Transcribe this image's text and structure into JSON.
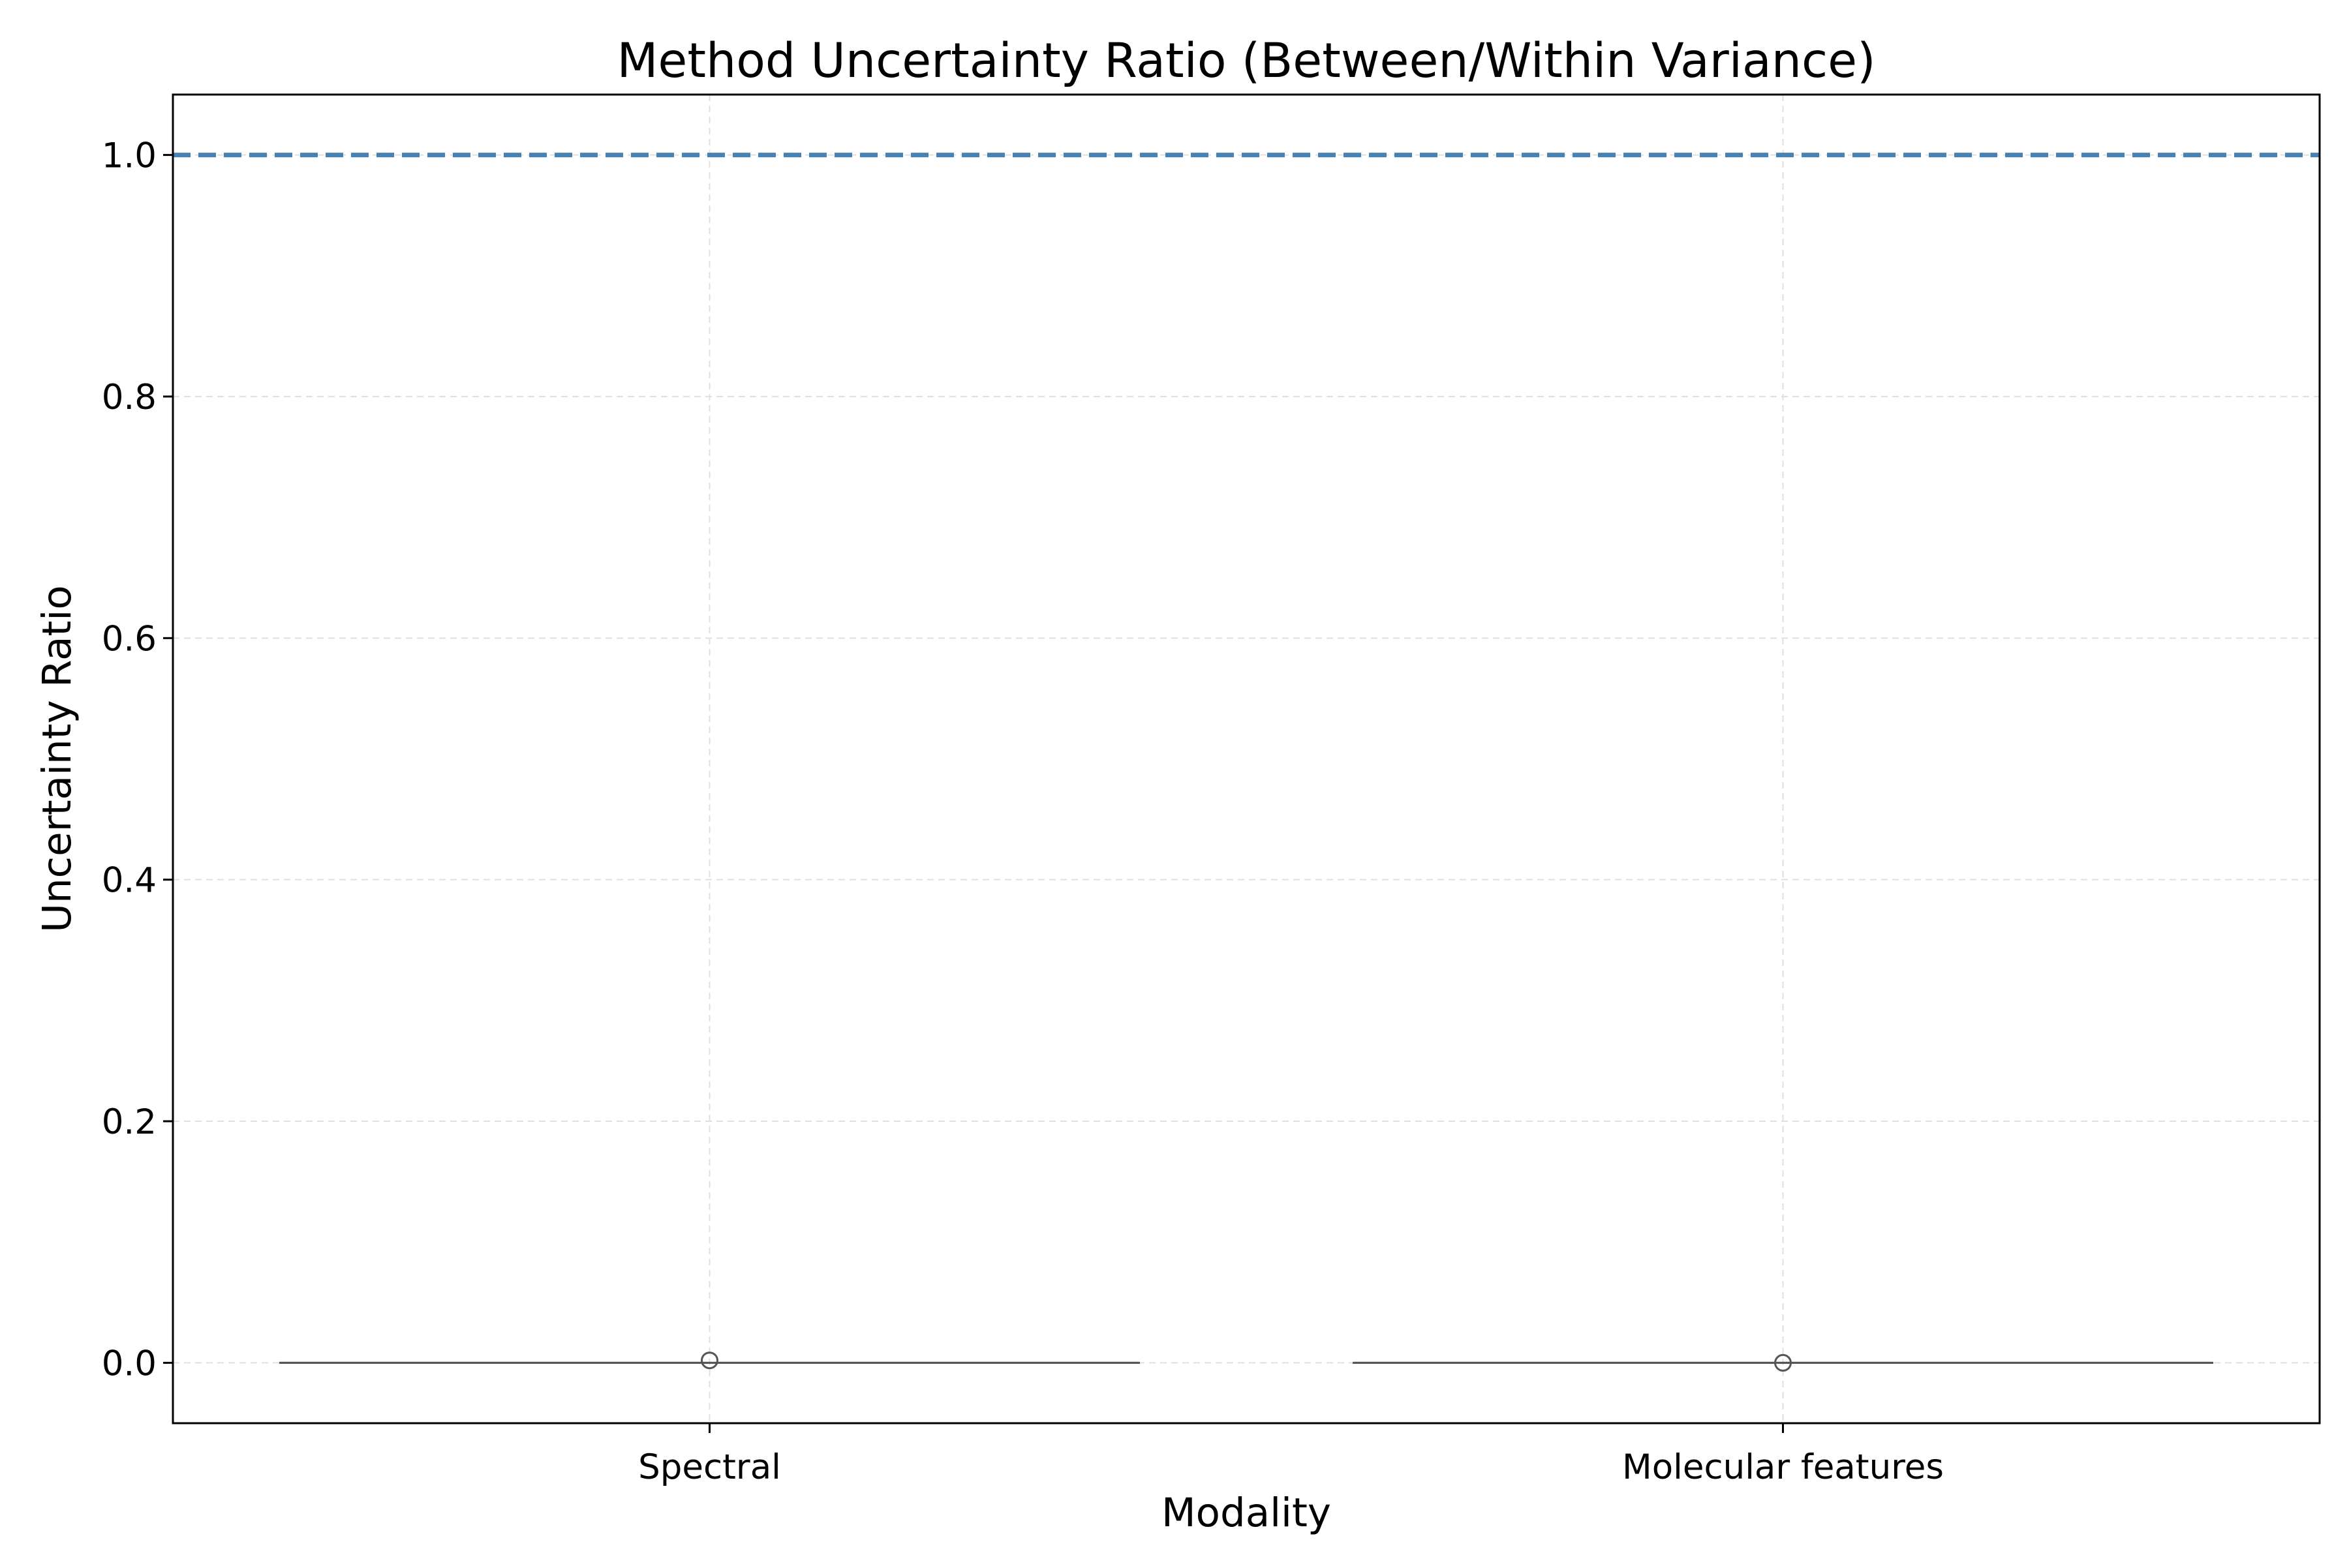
{
  "chart_data": {
    "type": "boxplot",
    "title": "Method Uncertainty Ratio (Between/Within Variance)",
    "xlabel": "Modality",
    "ylabel": "Uncertainty Ratio",
    "categories": [
      "Spectral",
      "Molecular features"
    ],
    "ylim": [
      -0.05,
      1.05
    ],
    "yticks": [
      0.0,
      0.2,
      0.4,
      0.6,
      0.8,
      1.0
    ],
    "ytick_labels": [
      "0.0",
      "0.2",
      "0.4",
      "0.6",
      "0.8",
      "1.0"
    ],
    "boxes": [
      {
        "category": "Spectral",
        "q1": 0.0,
        "median": 0.0,
        "q3": 0.0,
        "whisker_low": 0.0,
        "whisker_high": 0.0,
        "outliers": [
          0.002
        ]
      },
      {
        "category": "Molecular features",
        "q1": 0.0,
        "median": 0.0,
        "q3": 0.0,
        "whisker_low": 0.0,
        "whisker_high": 0.0,
        "outliers": [
          0.0
        ]
      }
    ],
    "reference_line": {
      "y": 1.0,
      "style": "dashed",
      "color": "#4682b4"
    },
    "grid": true,
    "colors": {
      "box": "#555555",
      "outlier": "#555555",
      "grid": "#e0e0e0",
      "reference": "#4682b4"
    }
  }
}
